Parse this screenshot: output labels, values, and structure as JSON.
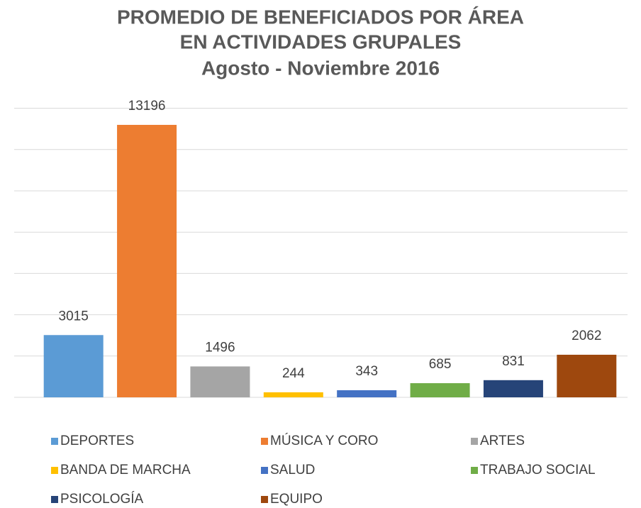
{
  "chart_data": {
    "type": "bar",
    "title": [
      "PROMEDIO DE BENEFICIADOS POR ÁREA",
      "EN ACTIVIDADES GRUPALES"
    ],
    "subtitle": "Agosto - Noviembre 2016",
    "categories": [
      "DEPORTES",
      "MÚSICA Y CORO",
      "ARTES",
      "BANDA DE MARCHA",
      "SALUD",
      "TRABAJO SOCIAL",
      "PSICOLOGÍA",
      "EQUIPO"
    ],
    "values": [
      3015,
      13196,
      1496,
      244,
      343,
      685,
      831,
      2062
    ],
    "colors": [
      "#5b9bd5",
      "#ed7d31",
      "#a5a5a5",
      "#ffc000",
      "#4472c4",
      "#70ad47",
      "#264478",
      "#9e480e"
    ],
    "ylim": [
      0,
      14000
    ],
    "yticks": [
      0,
      2000,
      4000,
      6000,
      8000,
      10000,
      12000,
      14000
    ],
    "grid": true
  }
}
